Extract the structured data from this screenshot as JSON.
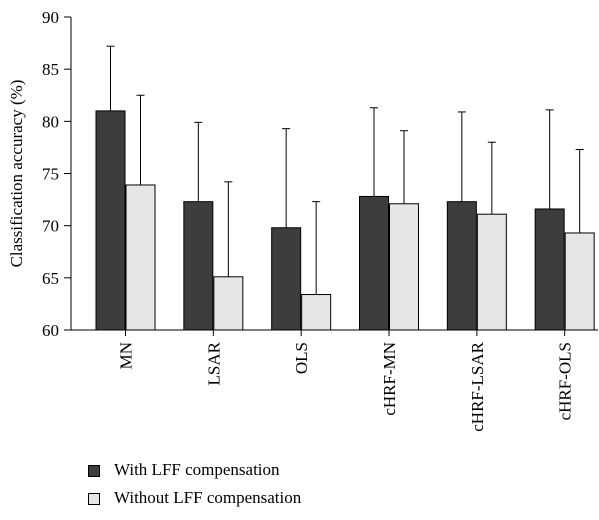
{
  "chart_data": {
    "type": "bar",
    "categories": [
      "MN",
      "LSAR",
      "OLS",
      "cHRF-MN",
      "cHRF-LSAR",
      "cHRF-OLS"
    ],
    "series": [
      {
        "name": "With LFF compensation",
        "color": "#3d3d3d",
        "values": [
          81.0,
          72.3,
          69.8,
          72.8,
          72.3,
          71.6
        ],
        "errors": [
          6.2,
          7.6,
          9.5,
          8.5,
          8.6,
          9.5
        ]
      },
      {
        "name": "Without LFF compensation",
        "color": "#e6e6e6",
        "values": [
          73.9,
          65.1,
          63.4,
          72.1,
          71.1,
          69.3
        ],
        "errors": [
          8.6,
          9.1,
          8.9,
          7.0,
          6.9,
          8.0
        ]
      }
    ],
    "ylabel": "Classification accuracy (%)",
    "xlabel": "",
    "ylim": [
      60,
      90
    ],
    "yticks": [
      "60",
      "65",
      "70",
      "75",
      "80",
      "85",
      "90"
    ],
    "grid": false,
    "legend_position": "bottom-left"
  }
}
